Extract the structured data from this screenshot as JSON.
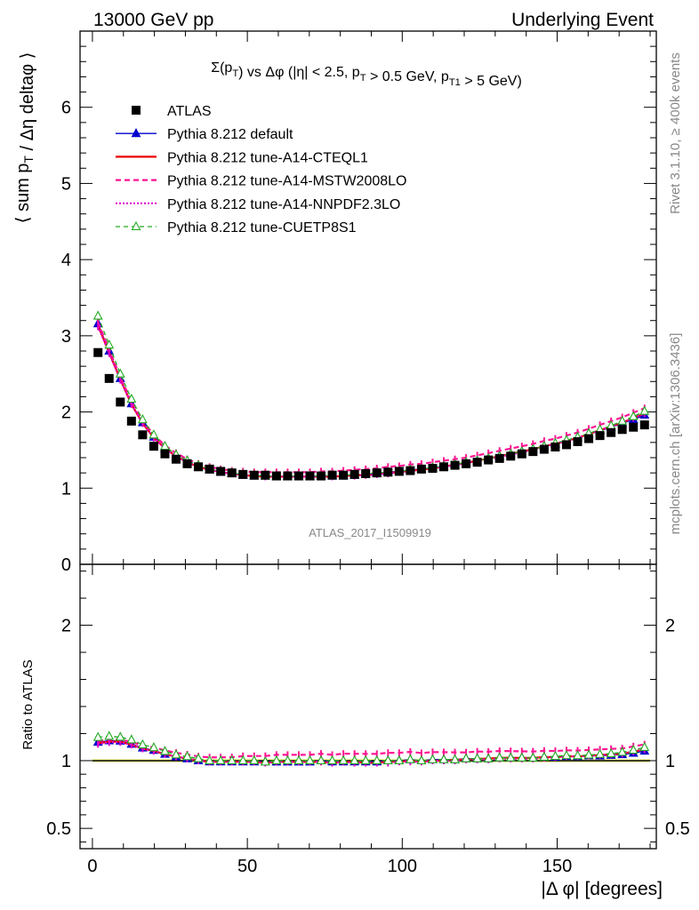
{
  "header": {
    "left": "13000 GeV pp",
    "right": "Underlying Event"
  },
  "side_labels": {
    "rivet": "Rivet 3.1.10, ≥ 400k events",
    "mcplots": "mcplots.cern.ch [arXiv:1306.3436]"
  },
  "watermark": "ATLAS_2017_I1509919",
  "chart_data": [
    {
      "type": "scatter",
      "panel": "main",
      "title": "Σ(pT) vs Δφ (|η| < 2.5, pT > 0.5 GeV, pT1 > 5 GeV)",
      "ylabel": "⟨ sum pT / Δη deltaφ ⟩",
      "xlim": [
        -4,
        182
      ],
      "ylim": [
        0,
        7
      ],
      "y_ticks": [
        "0",
        "1",
        "2",
        "3",
        "4",
        "5",
        "6"
      ],
      "legend_position": "top-left",
      "x": [
        1.8,
        5.4,
        9.0,
        12.6,
        16.2,
        19.8,
        23.4,
        27.0,
        30.6,
        34.2,
        37.8,
        41.4,
        45.0,
        48.6,
        52.2,
        55.8,
        59.4,
        63.0,
        66.6,
        70.2,
        73.8,
        77.4,
        81.0,
        84.6,
        88.2,
        91.8,
        95.4,
        99.0,
        102.6,
        106.2,
        109.8,
        113.4,
        117.0,
        120.6,
        124.2,
        127.8,
        131.4,
        135.0,
        138.6,
        142.2,
        145.8,
        149.4,
        153.0,
        156.6,
        160.2,
        163.8,
        167.4,
        171.0,
        174.6,
        178.2
      ],
      "series": [
        {
          "name": "ATLAS",
          "style": "data",
          "color": "#000000",
          "values": [
            2.78,
            2.44,
            2.13,
            1.88,
            1.7,
            1.55,
            1.45,
            1.38,
            1.32,
            1.28,
            1.25,
            1.22,
            1.2,
            1.18,
            1.17,
            1.17,
            1.16,
            1.16,
            1.16,
            1.16,
            1.16,
            1.17,
            1.17,
            1.18,
            1.19,
            1.2,
            1.21,
            1.22,
            1.23,
            1.25,
            1.26,
            1.28,
            1.3,
            1.32,
            1.34,
            1.37,
            1.39,
            1.42,
            1.45,
            1.48,
            1.51,
            1.54,
            1.57,
            1.61,
            1.65,
            1.69,
            1.73,
            1.77,
            1.8,
            1.83
          ]
        },
        {
          "name": "Pythia 8.212 default",
          "style": "blue",
          "color": "#0000cc",
          "values": [
            3.16,
            2.8,
            2.44,
            2.11,
            1.86,
            1.67,
            1.52,
            1.42,
            1.34,
            1.28,
            1.24,
            1.21,
            1.19,
            1.17,
            1.16,
            1.16,
            1.15,
            1.15,
            1.15,
            1.15,
            1.16,
            1.16,
            1.16,
            1.17,
            1.18,
            1.19,
            1.21,
            1.22,
            1.24,
            1.25,
            1.27,
            1.29,
            1.31,
            1.34,
            1.36,
            1.39,
            1.42,
            1.45,
            1.48,
            1.51,
            1.55,
            1.58,
            1.62,
            1.66,
            1.71,
            1.75,
            1.8,
            1.85,
            1.9,
            1.96
          ]
        },
        {
          "name": "Pythia 8.212 tune-A14-CTEQL1",
          "style": "red",
          "color": "#ee0000",
          "values": [
            3.14,
            2.78,
            2.43,
            2.1,
            1.85,
            1.66,
            1.52,
            1.42,
            1.34,
            1.28,
            1.24,
            1.21,
            1.19,
            1.17,
            1.16,
            1.15,
            1.15,
            1.15,
            1.15,
            1.15,
            1.15,
            1.15,
            1.16,
            1.17,
            1.17,
            1.18,
            1.2,
            1.21,
            1.23,
            1.24,
            1.26,
            1.28,
            1.31,
            1.33,
            1.36,
            1.39,
            1.42,
            1.45,
            1.48,
            1.51,
            1.55,
            1.58,
            1.62,
            1.66,
            1.71,
            1.76,
            1.81,
            1.86,
            1.92,
            1.98
          ]
        },
        {
          "name": "Pythia 8.212 tune-A14-MSTW2008LO",
          "style": "dashed",
          "color": "#ff1493",
          "values": [
            3.18,
            2.82,
            2.46,
            2.14,
            1.89,
            1.7,
            1.56,
            1.46,
            1.38,
            1.32,
            1.28,
            1.25,
            1.23,
            1.22,
            1.21,
            1.21,
            1.21,
            1.21,
            1.21,
            1.21,
            1.22,
            1.22,
            1.23,
            1.24,
            1.25,
            1.26,
            1.28,
            1.29,
            1.31,
            1.32,
            1.34,
            1.36,
            1.38,
            1.4,
            1.43,
            1.46,
            1.49,
            1.52,
            1.55,
            1.58,
            1.62,
            1.65,
            1.69,
            1.73,
            1.78,
            1.83,
            1.88,
            1.93,
            1.99,
            2.05
          ]
        },
        {
          "name": "Pythia 8.212 tune-A14-NNPDF2.3LO",
          "style": "dotted",
          "color": "#dd00cc",
          "values": [
            3.12,
            2.77,
            2.42,
            2.1,
            1.85,
            1.66,
            1.52,
            1.42,
            1.34,
            1.28,
            1.24,
            1.21,
            1.19,
            1.17,
            1.16,
            1.15,
            1.15,
            1.15,
            1.15,
            1.15,
            1.15,
            1.15,
            1.16,
            1.16,
            1.17,
            1.18,
            1.19,
            1.21,
            1.22,
            1.24,
            1.26,
            1.28,
            1.3,
            1.33,
            1.35,
            1.38,
            1.41,
            1.44,
            1.47,
            1.5,
            1.54,
            1.58,
            1.62,
            1.66,
            1.71,
            1.76,
            1.81,
            1.86,
            1.92,
            1.98
          ]
        },
        {
          "name": "Pythia 8.212 tune-CUETP8S1",
          "style": "green",
          "color": "#22aa22",
          "values": [
            3.26,
            2.88,
            2.5,
            2.17,
            1.9,
            1.7,
            1.55,
            1.44,
            1.36,
            1.3,
            1.25,
            1.22,
            1.2,
            1.18,
            1.17,
            1.16,
            1.16,
            1.16,
            1.16,
            1.16,
            1.16,
            1.17,
            1.17,
            1.18,
            1.19,
            1.2,
            1.21,
            1.22,
            1.24,
            1.25,
            1.27,
            1.29,
            1.31,
            1.34,
            1.36,
            1.39,
            1.42,
            1.45,
            1.48,
            1.51,
            1.55,
            1.59,
            1.63,
            1.67,
            1.72,
            1.77,
            1.82,
            1.88,
            1.94,
            2.01
          ]
        }
      ]
    },
    {
      "type": "scatter",
      "panel": "ratio",
      "ylabel": "Ratio to ATLAS",
      "xlabel": "|Δ φ| [degrees]",
      "xlim": [
        -4,
        182
      ],
      "ylim": [
        0.35,
        2.45
      ],
      "y_ticks": [
        "0.5",
        "1",
        "2"
      ],
      "x_ticks": [
        "0",
        "50",
        "100",
        "150"
      ]
    }
  ]
}
